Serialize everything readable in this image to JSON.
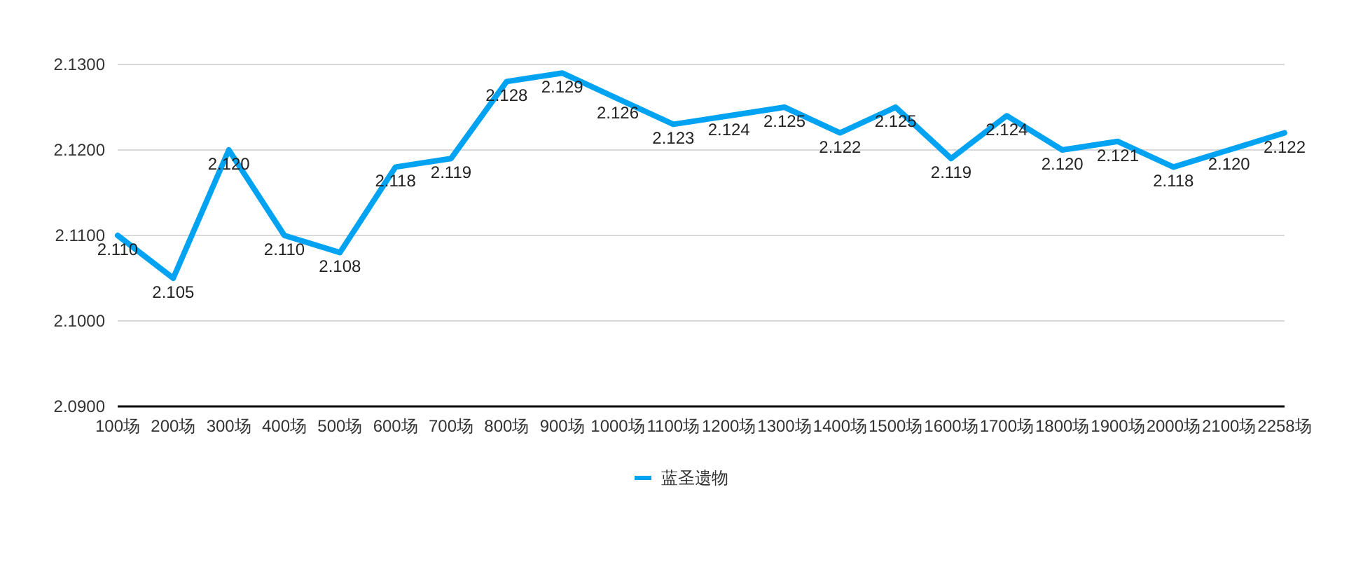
{
  "chart_data": {
    "type": "line",
    "categories": [
      "100场",
      "200场",
      "300场",
      "400场",
      "500场",
      "600场",
      "700场",
      "800场",
      "900场",
      "1000场",
      "1100场",
      "1200场",
      "1300场",
      "1400场",
      "1500场",
      "1600场",
      "1700场",
      "1800场",
      "1900场",
      "2000场",
      "2100场",
      "2258场"
    ],
    "series": [
      {
        "name": "蓝圣遗物",
        "color": "#00a2f2",
        "values": [
          2.11,
          2.105,
          2.12,
          2.11,
          2.108,
          2.118,
          2.119,
          2.128,
          2.129,
          2.126,
          2.123,
          2.124,
          2.125,
          2.122,
          2.125,
          2.119,
          2.124,
          2.12,
          2.121,
          2.118,
          2.12,
          2.122
        ],
        "value_labels": [
          "2.110",
          "2.105",
          "2.120",
          "2.110",
          "2.108",
          "2.118",
          "2.119",
          "2.128",
          "2.129",
          "2.126",
          "2.123",
          "2.124",
          "2.125",
          "2.122",
          "2.125",
          "2.119",
          "2.124",
          "2.120",
          "2.121",
          "2.118",
          "2.120",
          "2.122"
        ]
      }
    ],
    "ylim": [
      2.09,
      2.13
    ],
    "yticks": [
      {
        "value": 2.09,
        "label": "2.0900"
      },
      {
        "value": 2.1,
        "label": "2.1000"
      },
      {
        "value": 2.11,
        "label": "2.1100"
      },
      {
        "value": 2.12,
        "label": "2.1200"
      },
      {
        "value": 2.13,
        "label": "2.1300"
      }
    ],
    "grid": "y",
    "legend": "bottom"
  }
}
